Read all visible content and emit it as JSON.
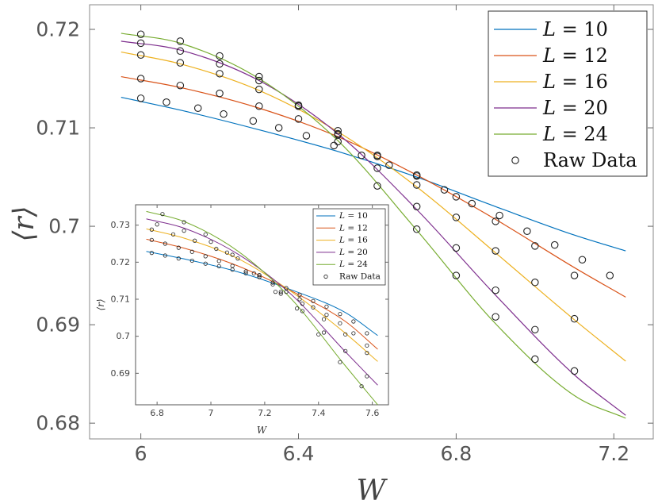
{
  "chart_data": [
    {
      "id": "main",
      "type": "line",
      "xlabel": "W",
      "ylabel": "⟨r⟩",
      "xlim": [
        5.87,
        7.3
      ],
      "ylim": [
        0.6784,
        0.7225
      ],
      "xticks": [
        6,
        6.4,
        6.8,
        7.2
      ],
      "xtick_labels": [
        "6",
        "6.4",
        "6.8",
        "7.2"
      ],
      "yticks": [
        0.68,
        0.69,
        0.7,
        0.71,
        0.72
      ],
      "ytick_labels": [
        "0.68",
        "0.69",
        "0.7",
        "0.71",
        "0.72"
      ],
      "legend_position": "top-right",
      "raw_data_label": "Raw Data",
      "series": [
        {
          "name": "L = 10",
          "L": "10",
          "color": "#0072BD",
          "fit_x": [
            5.95,
            6.1,
            6.3,
            6.5,
            6.7,
            6.9,
            7.1,
            7.23
          ],
          "fit_y": [
            0.7131,
            0.7118,
            0.7098,
            0.7076,
            0.705,
            0.702,
            0.6991,
            0.6975
          ],
          "raw_x": [
            6.0,
            6.065,
            6.145,
            6.21,
            6.285,
            6.35,
            6.42,
            6.49,
            6.56,
            6.63,
            6.7,
            6.77,
            6.84,
            6.91,
            6.98,
            7.05,
            7.12,
            7.19
          ],
          "raw_y": [
            0.713,
            0.7126,
            0.712,
            0.7114,
            0.7107,
            0.71,
            0.7092,
            0.7082,
            0.7072,
            0.7062,
            0.7051,
            0.7037,
            0.7023,
            0.7011,
            0.6995,
            0.6981,
            0.6966,
            0.695
          ]
        },
        {
          "name": "L = 12",
          "L": "12",
          "color": "#D95319",
          "fit_x": [
            5.95,
            6.1,
            6.3,
            6.5,
            6.7,
            6.9,
            7.1,
            7.23
          ],
          "fit_y": [
            0.7152,
            0.7141,
            0.712,
            0.7091,
            0.7052,
            0.7007,
            0.6958,
            0.6928
          ],
          "raw_x": [
            6.0,
            6.1,
            6.2,
            6.3,
            6.4,
            6.5,
            6.6,
            6.7,
            6.8,
            6.9,
            7.0,
            7.1
          ],
          "raw_y": [
            0.715,
            0.7143,
            0.7135,
            0.7122,
            0.7109,
            0.7093,
            0.7072,
            0.7052,
            0.703,
            0.7005,
            0.698,
            0.695
          ]
        },
        {
          "name": "L = 16",
          "L": "16",
          "color": "#EDB120",
          "fit_x": [
            5.95,
            6.1,
            6.3,
            6.5,
            6.7,
            6.9,
            7.1,
            7.23
          ],
          "fit_y": [
            0.7177,
            0.7165,
            0.7138,
            0.7096,
            0.704,
            0.6973,
            0.6905,
            0.6863
          ],
          "raw_x": [
            6.0,
            6.1,
            6.2,
            6.3,
            6.4,
            6.5,
            6.6,
            6.7,
            6.8,
            6.9,
            7.0,
            7.1
          ],
          "raw_y": [
            0.7174,
            0.7166,
            0.7155,
            0.7139,
            0.7122,
            0.7097,
            0.7071,
            0.7042,
            0.7009,
            0.6975,
            0.6943,
            0.6906
          ]
        },
        {
          "name": "L = 20",
          "L": "20",
          "color": "#7E2F8E",
          "fit_x": [
            5.95,
            6.1,
            6.3,
            6.5,
            6.7,
            6.9,
            7.1,
            7.23
          ],
          "fit_y": [
            0.7188,
            0.7179,
            0.7148,
            0.7094,
            0.7017,
            0.693,
            0.6849,
            0.6808
          ],
          "raw_x": [
            6.0,
            6.1,
            6.2,
            6.3,
            6.4,
            6.5,
            6.6,
            6.7,
            6.8,
            6.9,
            7.0,
            7.1
          ],
          "raw_y": [
            0.7186,
            0.7178,
            0.7165,
            0.7148,
            0.7122,
            0.7094,
            0.7059,
            0.702,
            0.6978,
            0.6935,
            0.6895,
            0.6853
          ]
        },
        {
          "name": "L = 24",
          "L": "24",
          "color": "#77AC30",
          "fit_x": [
            5.95,
            6.1,
            6.3,
            6.5,
            6.7,
            6.9,
            7.1,
            7.23
          ],
          "fit_y": [
            0.7196,
            0.7186,
            0.715,
            0.7087,
            0.6996,
            0.6901,
            0.6828,
            0.6805
          ],
          "raw_x": [
            6.0,
            6.1,
            6.2,
            6.3,
            6.4,
            6.5,
            6.6,
            6.7,
            6.8,
            6.9,
            7.0
          ],
          "raw_y": [
            0.7195,
            0.7188,
            0.7173,
            0.7152,
            0.7123,
            0.7086,
            0.7041,
            0.6997,
            0.695,
            0.6908,
            0.6865
          ]
        }
      ]
    },
    {
      "id": "inset",
      "type": "line",
      "xlabel": "W",
      "ylabel": "⟨r⟩",
      "xlim": [
        6.72,
        7.66
      ],
      "ylim": [
        0.6815,
        0.7355
      ],
      "xticks": [
        6.8,
        7,
        7.2,
        7.4,
        7.6
      ],
      "xtick_labels": [
        "6.8",
        "7",
        "7.2",
        "7.4",
        "7.6"
      ],
      "yticks": [
        0.69,
        0.7,
        0.71,
        0.72,
        0.73
      ],
      "ytick_labels": [
        "0.69",
        "0.7",
        "0.71",
        "0.72",
        "0.73"
      ],
      "legend_position": "top-right",
      "raw_data_label": "Raw Data",
      "series": [
        {
          "name": "L = 10",
          "L": "10",
          "color": "#0072BD",
          "fit_x": [
            6.76,
            6.9,
            7.1,
            7.3,
            7.5,
            7.62
          ],
          "fit_y": [
            0.7229,
            0.7209,
            0.7174,
            0.7125,
            0.7064,
            0.7002
          ],
          "raw_x": [
            6.78,
            6.83,
            6.88,
            6.93,
            6.98,
            7.03,
            7.08,
            7.13,
            7.18,
            7.23,
            7.28,
            7.33,
            7.38,
            7.43,
            7.48,
            7.53,
            7.58
          ],
          "raw_y": [
            0.7225,
            0.7218,
            0.721,
            0.7204,
            0.7196,
            0.7189,
            0.718,
            0.717,
            0.716,
            0.7145,
            0.713,
            0.7112,
            0.7095,
            0.708,
            0.706,
            0.704,
            0.7008
          ]
        },
        {
          "name": "L = 12",
          "L": "12",
          "color": "#D95319",
          "fit_x": [
            6.76,
            6.9,
            7.1,
            7.3,
            7.5,
            7.62
          ],
          "fit_y": [
            0.7262,
            0.7238,
            0.719,
            0.7122,
            0.704,
            0.6965
          ],
          "raw_x": [
            6.78,
            6.83,
            6.88,
            6.93,
            6.98,
            7.03,
            7.08,
            7.13,
            7.18,
            7.23,
            7.28,
            7.33,
            7.38,
            7.43,
            7.48,
            7.53,
            7.58
          ],
          "raw_y": [
            0.726,
            0.725,
            0.7239,
            0.7228,
            0.7216,
            0.7203,
            0.719,
            0.7175,
            0.716,
            0.714,
            0.712,
            0.71,
            0.7078,
            0.7058,
            0.7035,
            0.7008,
            0.6975
          ]
        },
        {
          "name": "L = 16",
          "L": "16",
          "color": "#EDB120",
          "fit_x": [
            6.76,
            6.9,
            7.1,
            7.3,
            7.5,
            7.62
          ],
          "fit_y": [
            0.729,
            0.7265,
            0.721,
            0.712,
            0.7008,
            0.6932
          ],
          "raw_x": [
            6.78,
            6.86,
            6.94,
            7.02,
            7.1,
            7.18,
            7.26,
            7.34,
            7.42,
            7.5,
            7.58
          ],
          "raw_y": [
            0.7288,
            0.7275,
            0.7258,
            0.7236,
            0.721,
            0.7165,
            0.712,
            0.7088,
            0.7046,
            0.7005,
            0.6955
          ]
        },
        {
          "name": "L = 20",
          "L": "20",
          "color": "#7E2F8E",
          "fit_x": [
            6.76,
            6.9,
            7.1,
            7.3,
            7.5,
            7.62
          ],
          "fit_y": [
            0.7317,
            0.7292,
            0.7222,
            0.7112,
            0.6958,
            0.6868
          ],
          "raw_x": [
            6.8,
            6.9,
            7.0,
            7.08,
            7.18,
            7.26,
            7.34,
            7.42,
            7.5,
            7.58
          ],
          "raw_y": [
            0.7302,
            0.7285,
            0.7255,
            0.722,
            0.7165,
            0.7115,
            0.7068,
            0.701,
            0.696,
            0.6892
          ]
        },
        {
          "name": "L = 24",
          "L": "24",
          "color": "#77AC30",
          "fit_x": [
            6.76,
            6.9,
            7.1,
            7.3,
            7.5,
            7.62
          ],
          "fit_y": [
            0.7337,
            0.731,
            0.723,
            0.71,
            0.692,
            0.6815
          ],
          "raw_x": [
            6.82,
            6.9,
            6.98,
            7.06,
            7.16,
            7.24,
            7.32,
            7.4,
            7.48,
            7.56
          ],
          "raw_y": [
            0.733,
            0.7308,
            0.7275,
            0.7226,
            0.717,
            0.712,
            0.7075,
            0.7005,
            0.693,
            0.6865
          ]
        }
      ]
    }
  ]
}
